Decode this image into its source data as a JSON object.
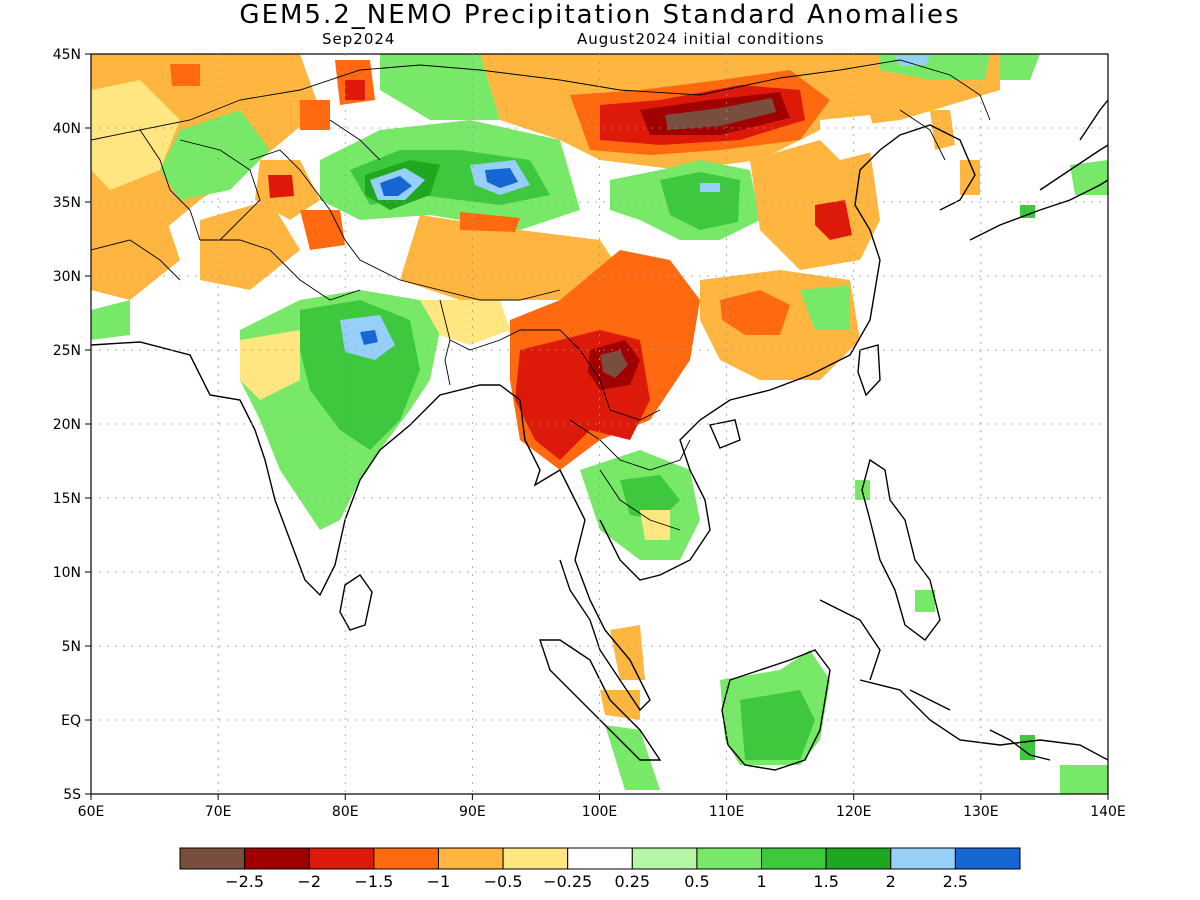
{
  "title": "GEM5.2_NEMO Precipitation Standard Anomalies",
  "subtitle_left": "Sep2024",
  "subtitle_right": "August2024 initial conditions",
  "lon_ticks": [
    "60E",
    "70E",
    "80E",
    "90E",
    "100E",
    "110E",
    "120E",
    "130E",
    "140E"
  ],
  "lat_ticks": [
    "45N",
    "40N",
    "35N",
    "30N",
    "25N",
    "20N",
    "15N",
    "10N",
    "5N",
    "EQ",
    "5S"
  ],
  "colorbar": {
    "colors": [
      "#7a4e3f",
      "#a00000",
      "#dd1a0a",
      "#ff6a10",
      "#ffb640",
      "#ffe680",
      "#ffffff",
      "#b4f5a6",
      "#78e868",
      "#3ec83e",
      "#1fa81f",
      "#96d0f8",
      "#1666d4"
    ],
    "labels": [
      "−2.5",
      "−2",
      "−1.5",
      "−1",
      "−0.5",
      "−0.25",
      "0.25",
      "0.5",
      "1",
      "1.5",
      "2",
      "2.5"
    ]
  },
  "map": {
    "lon_range": [
      60,
      140
    ],
    "lat_range": [
      -5,
      45
    ]
  }
}
